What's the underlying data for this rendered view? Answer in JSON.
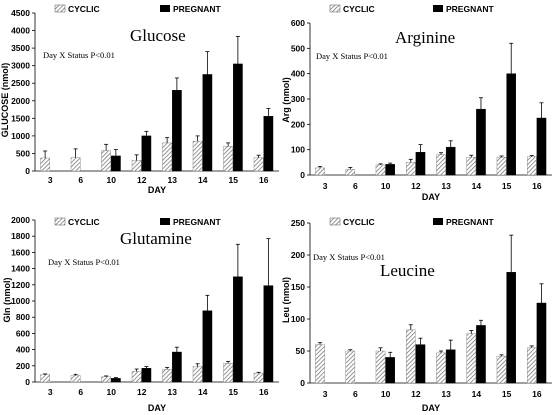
{
  "chart_data": [
    {
      "type": "bar",
      "title": "Glucose",
      "annotation": "Day X Status  P<0.01",
      "xlabel": "DAY",
      "ylabel": "GLUCOSE (nmol)",
      "ylim": [
        0,
        4500
      ],
      "yticks": [
        0,
        500,
        1000,
        1500,
        2000,
        2500,
        3000,
        3500,
        4000,
        4500
      ],
      "categories": [
        "3",
        "6",
        "10",
        "12",
        "13",
        "14",
        "15",
        "16"
      ],
      "legend": [
        "CYCLIC",
        "PREGNANT"
      ],
      "series": [
        {
          "name": "CYCLIC",
          "values": [
            370,
            380,
            580,
            300,
            800,
            850,
            700,
            380
          ],
          "errors": [
            200,
            250,
            180,
            160,
            150,
            150,
            100,
            70
          ]
        },
        {
          "name": "PREGNANT",
          "values": [
            null,
            null,
            430,
            1000,
            2300,
            2750,
            3050,
            1560
          ],
          "errors": [
            null,
            null,
            180,
            130,
            350,
            650,
            780,
            220
          ]
        }
      ]
    },
    {
      "type": "bar",
      "title": "Arginine",
      "annotation": "Day X Status  P<0.01",
      "xlabel": "DAY",
      "ylabel": "Arg (nmol)",
      "ylim": [
        0,
        600
      ],
      "yticks": [
        0,
        100,
        200,
        300,
        400,
        500,
        600
      ],
      "categories": [
        "3",
        "6",
        "10",
        "12",
        "13",
        "14",
        "15",
        "16"
      ],
      "legend": [
        "CYCLIC",
        "PREGNANT"
      ],
      "series": [
        {
          "name": "CYCLIC",
          "values": [
            28,
            22,
            40,
            50,
            80,
            70,
            70,
            72
          ],
          "errors": [
            5,
            8,
            4,
            12,
            8,
            8,
            5,
            5
          ]
        },
        {
          "name": "PREGNANT",
          "values": [
            null,
            null,
            42,
            90,
            110,
            260,
            400,
            225
          ],
          "errors": [
            null,
            null,
            5,
            30,
            25,
            45,
            120,
            60
          ]
        }
      ]
    },
    {
      "type": "bar",
      "title": "Glutamine",
      "annotation": "Day X Status  P<0.01",
      "xlabel": "DAY",
      "ylabel": "Gln (nmol)",
      "ylim": [
        0,
        2000
      ],
      "yticks": [
        0,
        200,
        400,
        600,
        800,
        1000,
        1200,
        1400,
        1600,
        1800,
        2000
      ],
      "categories": [
        "3",
        "6",
        "10",
        "12",
        "13",
        "14",
        "15",
        "16"
      ],
      "legend": [
        "CYCLIC",
        "PREGNANT"
      ],
      "series": [
        {
          "name": "CYCLIC",
          "values": [
            90,
            80,
            65,
            130,
            155,
            190,
            230,
            110
          ],
          "errors": [
            10,
            15,
            10,
            30,
            25,
            35,
            25,
            10
          ]
        },
        {
          "name": "PREGNANT",
          "values": [
            null,
            null,
            45,
            170,
            370,
            880,
            1300,
            1190
          ],
          "errors": [
            null,
            null,
            10,
            20,
            60,
            190,
            400,
            580
          ]
        }
      ]
    },
    {
      "type": "bar",
      "title": "Leucine",
      "annotation": "Day X Status    P<0.01",
      "xlabel": "DAY",
      "ylabel": "Leu (nmol)",
      "ylim": [
        0,
        250
      ],
      "yticks": [
        0,
        50,
        100,
        150,
        200,
        250
      ],
      "categories": [
        "3",
        "6",
        "10",
        "12",
        "13",
        "14",
        "15",
        "16"
      ],
      "legend": [
        "CYCLIC",
        "PREGNANT"
      ],
      "series": [
        {
          "name": "CYCLIC",
          "values": [
            60,
            50,
            50,
            83,
            47,
            77,
            42,
            55
          ],
          "errors": [
            3,
            2,
            5,
            8,
            3,
            5,
            2,
            3
          ]
        },
        {
          "name": "PREGNANT",
          "values": [
            null,
            null,
            40,
            60,
            52,
            90,
            173,
            125
          ],
          "errors": [
            null,
            null,
            8,
            10,
            15,
            8,
            58,
            30
          ]
        }
      ]
    }
  ]
}
